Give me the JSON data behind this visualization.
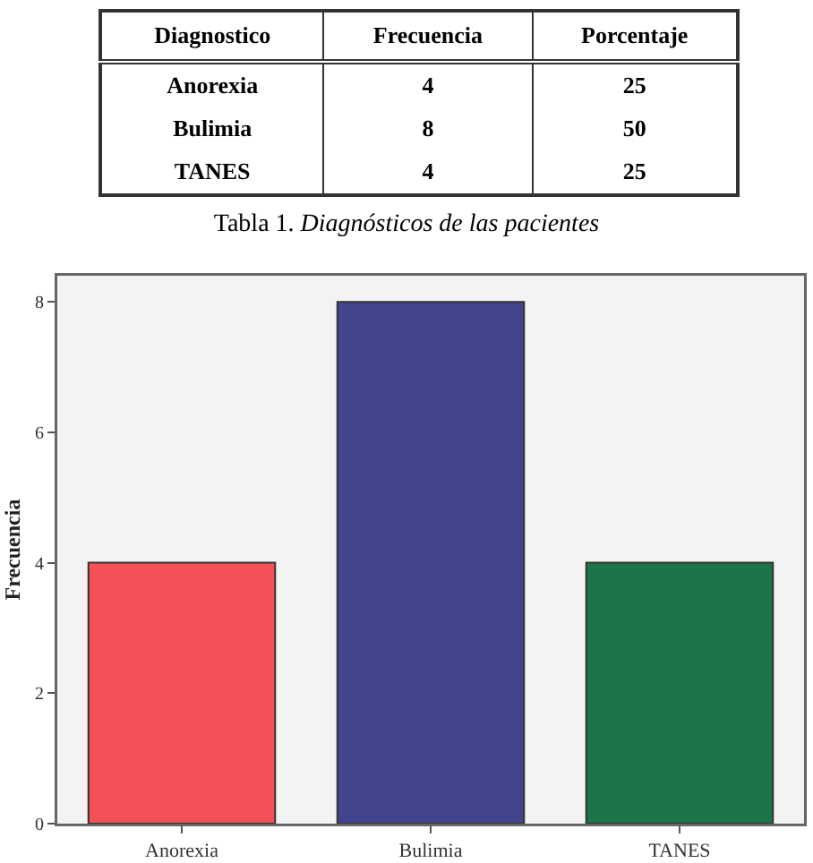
{
  "chart_data": [
    {
      "type": "other",
      "annotations": [
        "Diagnostico",
        "Frecuencia",
        "Porcentaje",
        "Anorexia",
        "4",
        "25",
        "Bulimia",
        "8",
        "50",
        "TANES",
        "4",
        "25",
        "Tabla 1. Diagnósticos de las pacientes"
      ]
    },
    {
      "type": "bar",
      "categories": [
        "Anorexia",
        "Bulimia",
        "TANES"
      ],
      "values": [
        4,
        8,
        4
      ],
      "colors": [
        "#f25257",
        "#43448e",
        "#1b7549"
      ],
      "ylabel": "Frecuencia",
      "ylim": [
        0,
        8.4
      ],
      "yticks": [
        0,
        2,
        4,
        6,
        8
      ],
      "grid": false
    }
  ]
}
